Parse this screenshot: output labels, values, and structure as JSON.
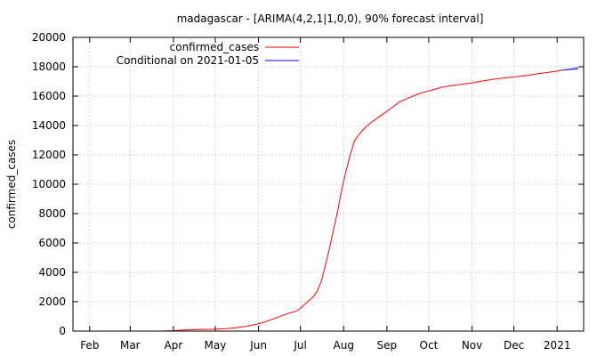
{
  "chart_data": {
    "type": "line",
    "title": "madagascar -  [ARIMA(4,2,1|1,0,0), 90% forecast interval]",
    "xlabel": "",
    "ylabel": "confirmed_cases",
    "ylim": [
      0,
      20000
    ],
    "y_ticks": [
      0,
      2000,
      4000,
      6000,
      8000,
      10000,
      12000,
      14000,
      16000,
      18000,
      20000
    ],
    "x_range": [
      "2020-01-20",
      "2021-01-20"
    ],
    "x_ticks": [
      {
        "date": "2020-02-01",
        "label": "Feb"
      },
      {
        "date": "2020-03-01",
        "label": "Mar"
      },
      {
        "date": "2020-04-01",
        "label": "Apr"
      },
      {
        "date": "2020-05-01",
        "label": "May"
      },
      {
        "date": "2020-06-01",
        "label": "Jun"
      },
      {
        "date": "2020-07-01",
        "label": "Jul"
      },
      {
        "date": "2020-08-01",
        "label": "Aug"
      },
      {
        "date": "2020-09-01",
        "label": "Sep"
      },
      {
        "date": "2020-10-01",
        "label": "Oct"
      },
      {
        "date": "2020-11-01",
        "label": "Nov"
      },
      {
        "date": "2020-12-01",
        "label": "Dec"
      },
      {
        "date": "2021-01-01",
        "label": "2021"
      }
    ],
    "grid": true,
    "legend_position": "top-left",
    "series": [
      {
        "name": "confirmed_cases",
        "color": "#ff0000",
        "points": [
          [
            "2020-03-20",
            0
          ],
          [
            "2020-03-25",
            5
          ],
          [
            "2020-04-01",
            30
          ],
          [
            "2020-04-08",
            70
          ],
          [
            "2020-04-15",
            100
          ],
          [
            "2020-04-22",
            120
          ],
          [
            "2020-05-01",
            130
          ],
          [
            "2020-05-08",
            160
          ],
          [
            "2020-05-15",
            220
          ],
          [
            "2020-05-22",
            300
          ],
          [
            "2020-06-01",
            500
          ],
          [
            "2020-06-08",
            700
          ],
          [
            "2020-06-15",
            950
          ],
          [
            "2020-06-22",
            1200
          ],
          [
            "2020-06-28",
            1350
          ],
          [
            "2020-07-01",
            1550
          ],
          [
            "2020-07-05",
            1900
          ],
          [
            "2020-07-10",
            2300
          ],
          [
            "2020-07-13",
            2700
          ],
          [
            "2020-07-16",
            3400
          ],
          [
            "2020-07-19",
            4500
          ],
          [
            "2020-07-22",
            5700
          ],
          [
            "2020-07-25",
            7000
          ],
          [
            "2020-07-28",
            8300
          ],
          [
            "2020-07-31",
            9800
          ],
          [
            "2020-08-03",
            11000
          ],
          [
            "2020-08-06",
            12100
          ],
          [
            "2020-08-09",
            13000
          ],
          [
            "2020-08-13",
            13500
          ],
          [
            "2020-08-17",
            13900
          ],
          [
            "2020-08-22",
            14300
          ],
          [
            "2020-08-28",
            14700
          ],
          [
            "2020-09-03",
            15100
          ],
          [
            "2020-09-10",
            15600
          ],
          [
            "2020-09-17",
            15900
          ],
          [
            "2020-09-25",
            16200
          ],
          [
            "2020-10-03",
            16400
          ],
          [
            "2020-10-10",
            16600
          ],
          [
            "2020-10-20",
            16750
          ],
          [
            "2020-11-01",
            16900
          ],
          [
            "2020-11-10",
            17050
          ],
          [
            "2020-11-20",
            17200
          ],
          [
            "2020-12-01",
            17300
          ],
          [
            "2020-12-10",
            17400
          ],
          [
            "2020-12-20",
            17550
          ],
          [
            "2021-01-01",
            17700
          ],
          [
            "2021-01-05",
            17770
          ]
        ]
      },
      {
        "name": "Conditional on 2021-01-05",
        "color": "#0000ff",
        "band_color": "#9999ff",
        "points": [
          [
            "2021-01-05",
            17770
          ],
          [
            "2021-01-09",
            17810
          ],
          [
            "2021-01-13",
            17860
          ],
          [
            "2021-01-16",
            17900
          ]
        ],
        "lower": [
          17770,
          17760,
          17760,
          17760
        ],
        "upper": [
          17770,
          17860,
          17960,
          18040
        ]
      }
    ]
  }
}
